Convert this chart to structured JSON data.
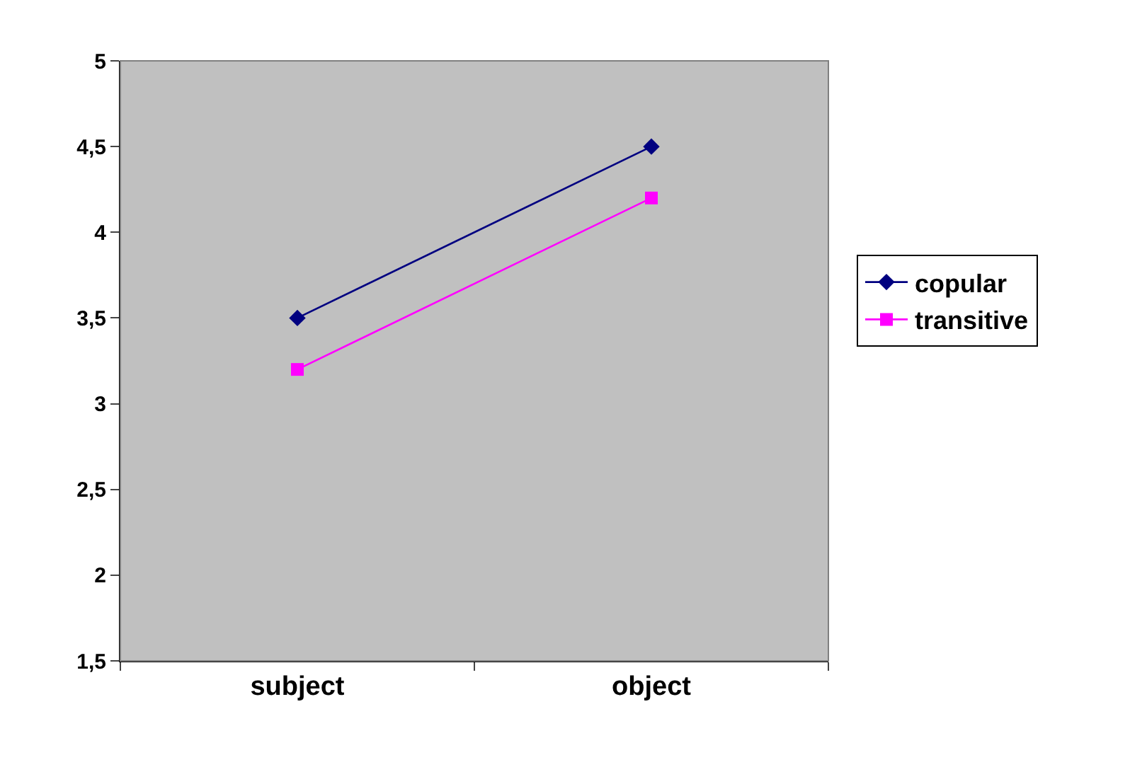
{
  "chart_data": {
    "type": "line",
    "categories": [
      "subject",
      "object"
    ],
    "series": [
      {
        "name": "copular",
        "color": "#000080",
        "marker": "diamond",
        "values": [
          3.5,
          4.5
        ]
      },
      {
        "name": "transitive",
        "color": "#ff00ff",
        "marker": "square",
        "values": [
          3.2,
          4.2
        ]
      }
    ],
    "ylim": [
      1.5,
      5
    ],
    "yticks": [
      {
        "value": 1.5,
        "label": "1,5"
      },
      2,
      {
        "value": 2.5,
        "label": "2,5"
      },
      3,
      {
        "value": 3.5,
        "label": "3,5"
      },
      4,
      {
        "value": 4.5,
        "label": "4,5"
      },
      5
    ],
    "grid": false,
    "legend": "right",
    "line_style": "solid"
  }
}
